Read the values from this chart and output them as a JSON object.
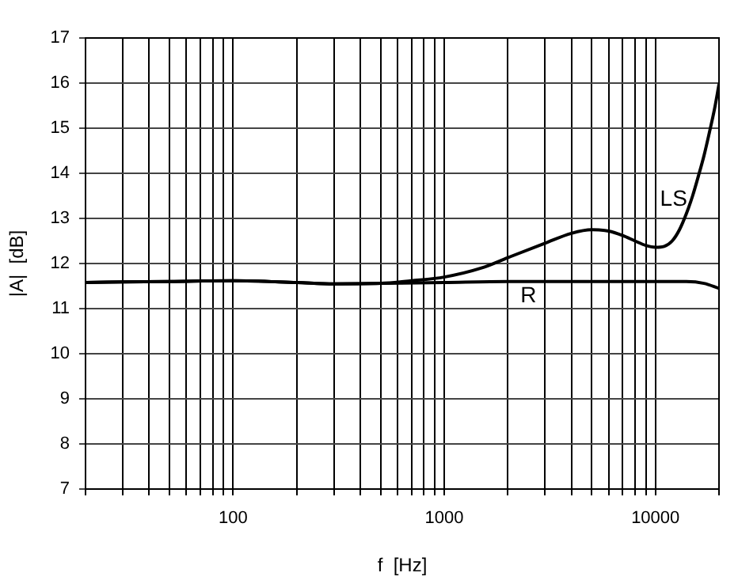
{
  "chart_data": {
    "type": "line",
    "xlabel": "f  [Hz]",
    "ylabel": "|A|  [dB]",
    "log": "x",
    "grid": true,
    "legend": false,
    "marker": "none",
    "line_style": "solid",
    "xlim": [
      20,
      20000
    ],
    "ylim": [
      7,
      17
    ],
    "xticks": [
      {
        "value": 20,
        "label": null
      },
      {
        "value": 30,
        "label": null
      },
      {
        "value": 40,
        "label": null
      },
      {
        "value": 50,
        "label": null
      },
      {
        "value": 60,
        "label": null
      },
      {
        "value": 70,
        "label": null
      },
      {
        "value": 80,
        "label": null
      },
      {
        "value": 90,
        "label": null
      },
      100,
      {
        "value": 200,
        "label": null
      },
      {
        "value": 300,
        "label": null
      },
      {
        "value": 400,
        "label": null
      },
      {
        "value": 500,
        "label": null
      },
      {
        "value": 600,
        "label": null
      },
      {
        "value": 700,
        "label": null
      },
      {
        "value": 800,
        "label": null
      },
      {
        "value": 900,
        "label": null
      },
      1000,
      {
        "value": 2000,
        "label": null
      },
      {
        "value": 3000,
        "label": null
      },
      {
        "value": 4000,
        "label": null
      },
      {
        "value": 5000,
        "label": null
      },
      {
        "value": 6000,
        "label": null
      },
      {
        "value": 7000,
        "label": null
      },
      {
        "value": 8000,
        "label": null
      },
      {
        "value": 9000,
        "label": null
      },
      10000,
      {
        "value": 20000,
        "label": null
      }
    ],
    "yticks": [
      7,
      8,
      9,
      10,
      11,
      12,
      13,
      14,
      15,
      16,
      17
    ],
    "series": [
      {
        "name": "LS",
        "color": "#000000",
        "x": [
          20,
          30,
          50,
          100,
          200,
          300,
          500,
          700,
          1000,
          1500,
          2000,
          3000,
          4000,
          5000,
          6000,
          7000,
          8000,
          9000,
          10000,
          11000,
          12000,
          13000,
          14000,
          15000,
          16000,
          17000,
          18000,
          19000,
          20000
        ],
        "values": [
          11.58,
          11.59,
          11.6,
          11.62,
          11.58,
          11.55,
          11.56,
          11.62,
          11.7,
          11.9,
          12.13,
          12.45,
          12.67,
          12.75,
          12.72,
          12.62,
          12.5,
          12.4,
          12.36,
          12.38,
          12.5,
          12.75,
          13.1,
          13.5,
          13.95,
          14.4,
          14.9,
          15.4,
          15.97
        ]
      },
      {
        "name": "R",
        "color": "#000000",
        "x": [
          20,
          30,
          50,
          100,
          200,
          300,
          500,
          1000,
          2000,
          5000,
          10000,
          14000,
          17000,
          20000
        ],
        "values": [
          11.58,
          11.59,
          11.6,
          11.62,
          11.58,
          11.55,
          11.56,
          11.58,
          11.6,
          11.6,
          11.6,
          11.6,
          11.56,
          11.45
        ]
      }
    ]
  }
}
